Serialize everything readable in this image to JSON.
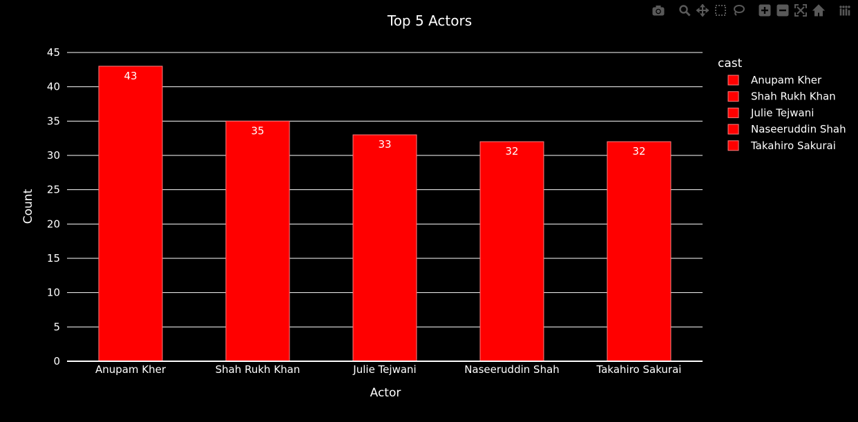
{
  "chart_data": {
    "type": "bar",
    "title": "Top 5 Actors",
    "xlabel": "Actor",
    "ylabel": "Count",
    "categories": [
      "Anupam Kher",
      "Shah Rukh Khan",
      "Julie Tejwani",
      "Naseeruddin Shah",
      "Takahiro Sakurai"
    ],
    "values": [
      43,
      35,
      33,
      32,
      32
    ],
    "data_labels": [
      "43",
      "35",
      "33",
      "32",
      "32"
    ],
    "ylim": [
      0,
      45
    ],
    "yticks": [
      "0",
      "5",
      "10",
      "15",
      "20",
      "25",
      "30",
      "35",
      "40",
      "45"
    ],
    "grid": true,
    "legend": {
      "title": "cast",
      "placement": "right",
      "entries": [
        "Anupam Kher",
        "Shah Rukh Khan",
        "Julie Tejwani",
        "Naseeruddin Shah",
        "Takahiro Sakurai"
      ]
    },
    "colors": {
      "background": "#000000",
      "bar": "#ff0000",
      "bar_outline": "#ff8080",
      "grid": "#ffffff",
      "text": "#ffffff"
    }
  },
  "modebar": {
    "icon_color": "#595959",
    "groups": [
      [
        "camera-icon"
      ],
      [
        "zoom-icon",
        "pan-icon",
        "box-select-icon",
        "lasso-select-icon"
      ],
      [
        "zoom-in-icon",
        "zoom-out-icon",
        "autoscale-icon",
        "reset-axes-icon"
      ],
      [
        "plotly-logo-icon"
      ]
    ]
  }
}
